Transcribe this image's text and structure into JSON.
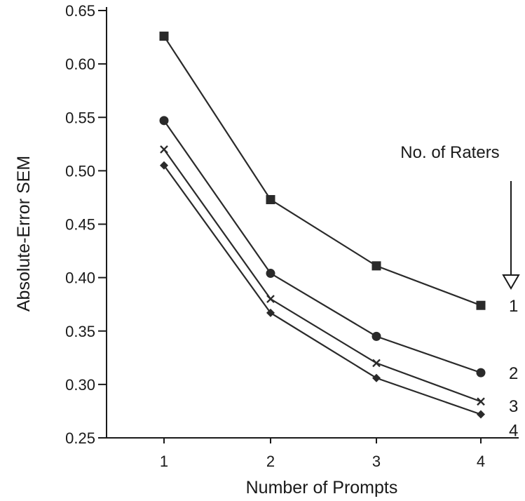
{
  "chart_data": {
    "type": "line",
    "xlabel": "Number of Prompts",
    "ylabel": "Absolute-Error SEM",
    "x": [
      1,
      2,
      3,
      4
    ],
    "x_tick_labels": [
      "1",
      "2",
      "3",
      "4"
    ],
    "ylim": [
      0.25,
      0.65
    ],
    "y_ticks": [
      0.25,
      0.3,
      0.35,
      0.4,
      0.45,
      0.5,
      0.55,
      0.6,
      0.65
    ],
    "y_tick_labels": [
      "0.25",
      "0.30",
      "0.35",
      "0.40",
      "0.45",
      "0.50",
      "0.55",
      "0.60",
      "0.65"
    ],
    "legend_title": "No. of Raters",
    "legend_arrow": "down",
    "grid": false,
    "series": [
      {
        "name": "1",
        "marker": "square",
        "values": [
          0.626,
          0.473,
          0.411,
          0.374
        ]
      },
      {
        "name": "2",
        "marker": "circle",
        "values": [
          0.547,
          0.404,
          0.345,
          0.311
        ]
      },
      {
        "name": "3",
        "marker": "x",
        "values": [
          0.52,
          0.38,
          0.32,
          0.284
        ]
      },
      {
        "name": "4",
        "marker": "diamond",
        "values": [
          0.505,
          0.367,
          0.306,
          0.272
        ]
      }
    ]
  }
}
